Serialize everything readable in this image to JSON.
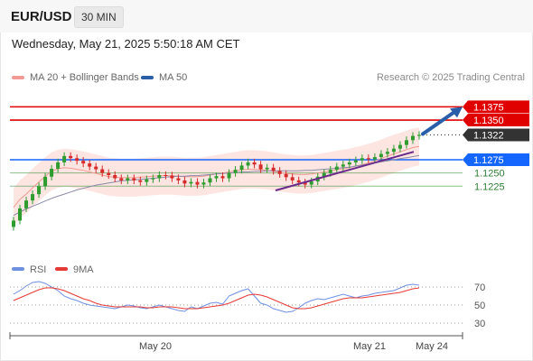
{
  "header": {
    "symbol": "EUR/USD",
    "timeframe": "30 MIN",
    "datetime": "Wednesday, May 21, 2025 5:50:18 AM CET"
  },
  "legend": {
    "bollinger_label": "MA 20 + Bollinger Bands",
    "ma50_label": "MA 50",
    "bollinger_color": "#f29a93",
    "ma50_color": "#2a5ea8",
    "copyright": "Research © 2025 Trading Central"
  },
  "rsi_legend": {
    "rsi_label": "RSI",
    "ma_label": "9MA",
    "rsi_color": "#6f8fe0",
    "ma_color": "#e53935"
  },
  "chart_data": [
    {
      "type": "candlestick",
      "title": "EUR/USD",
      "timeframe": "30 MIN",
      "x_ticks": [
        "May 20",
        "May 21",
        "May 24"
      ],
      "y_range": [
        1.113,
        1.142
      ],
      "levels": [
        {
          "value": 1.1375,
          "label": "1.1375",
          "role": "resistance",
          "color": "#e00000",
          "style": "solid"
        },
        {
          "value": 1.135,
          "label": "1.1350",
          "role": "resistance",
          "color": "#e00000",
          "style": "solid"
        },
        {
          "value": 1.1322,
          "label": "1.1322",
          "role": "last-price",
          "color": "#333333",
          "style": "dotted"
        },
        {
          "value": 1.1275,
          "label": "1.1275",
          "role": "pivot",
          "color": "#1565ff",
          "style": "solid"
        },
        {
          "value": 1.125,
          "label": "1.1250",
          "role": "support",
          "color": "#2e8b2e",
          "style": "solid"
        },
        {
          "value": 1.1225,
          "label": "1.1225",
          "role": "support",
          "color": "#2e8b2e",
          "style": "solid"
        }
      ],
      "close_series": [
        1.116,
        1.1183,
        1.1198,
        1.121,
        1.1225,
        1.1243,
        1.1258,
        1.127,
        1.1282,
        1.1278,
        1.1273,
        1.1268,
        1.1262,
        1.1257,
        1.125,
        1.1246,
        1.124,
        1.1236,
        1.124,
        1.1236,
        1.1233,
        1.1238,
        1.124,
        1.1246,
        1.1245,
        1.124,
        1.1236,
        1.123,
        1.1233,
        1.1228,
        1.1232,
        1.124,
        1.1244,
        1.124,
        1.125,
        1.1256,
        1.1264,
        1.127,
        1.1266,
        1.1257,
        1.126,
        1.1254,
        1.1248,
        1.1242,
        1.1236,
        1.1232,
        1.1228,
        1.1234,
        1.1243,
        1.125,
        1.1256,
        1.1262,
        1.1266,
        1.127,
        1.1274,
        1.1278,
        1.1276,
        1.128,
        1.1286,
        1.129,
        1.1296,
        1.1303,
        1.1312,
        1.132,
        1.1322
      ],
      "ma20": [
        1.1185,
        1.12,
        1.121,
        1.1222,
        1.1233,
        1.1244,
        1.1253,
        1.1258,
        1.126,
        1.1259,
        1.1257,
        1.1255,
        1.1252,
        1.1249,
        1.1246,
        1.1243,
        1.1242,
        1.1241,
        1.1241,
        1.1241,
        1.1242,
        1.1243,
        1.1244,
        1.1245,
        1.1245,
        1.1245,
        1.1244,
        1.1243,
        1.1243,
        1.1243,
        1.1244,
        1.1246,
        1.1248,
        1.125,
        1.1252,
        1.1254,
        1.1256,
        1.1257,
        1.1257,
        1.1256,
        1.1255,
        1.1253,
        1.1251,
        1.1249,
        1.1248,
        1.1247,
        1.1247,
        1.1248,
        1.125,
        1.1252,
        1.1254,
        1.1256,
        1.1258,
        1.126,
        1.1263,
        1.1266,
        1.1269,
        1.1273,
        1.1277,
        1.1282,
        1.1286,
        1.129,
        1.1294,
        1.1298,
        1.13
      ],
      "ma50": [
        1.117,
        1.1176,
        1.1182,
        1.1187,
        1.1192,
        1.1197,
        1.1202,
        1.1206,
        1.121,
        1.1214,
        1.1218,
        1.1221,
        1.1224,
        1.1227,
        1.1229,
        1.1231,
        1.1233,
        1.1235,
        1.1236,
        1.1237,
        1.1238,
        1.1239,
        1.124,
        1.1241,
        1.1242,
        1.1243,
        1.1244,
        1.1244,
        1.1245,
        1.1245,
        1.1246,
        1.1247,
        1.1248,
        1.1249,
        1.125,
        1.1251,
        1.1252,
        1.1252,
        1.1253,
        1.1253,
        1.1254,
        1.1254,
        1.1254,
        1.1254,
        1.1254,
        1.1254,
        1.1255,
        1.1255,
        1.1256,
        1.1257,
        1.1258,
        1.1259,
        1.126,
        1.1261,
        1.1263,
        1.1265,
        1.1267,
        1.1269,
        1.1271,
        1.1273,
        1.1275,
        1.1277,
        1.1279,
        1.1281,
        1.1283
      ],
      "bollinger_width": 0.0036,
      "trendlines": [
        {
          "from": [
            1.1217,
            "May 20 late"
          ],
          "to": [
            1.129,
            "May 21"
          ],
          "color": "#6a2a8a"
        }
      ],
      "target_arrow": {
        "from": 1.1322,
        "to": 1.1375,
        "color": "#2a5ea8"
      }
    },
    {
      "type": "line",
      "title": "RSI",
      "y_ticks": [
        70,
        50,
        30
      ],
      "y_range": [
        20,
        80
      ],
      "series": [
        {
          "name": "RSI",
          "values": [
            62,
            66,
            71,
            75,
            76,
            74,
            70,
            66,
            60,
            57,
            55,
            52,
            50,
            49,
            48,
            47,
            46,
            48,
            50,
            49,
            47,
            46,
            48,
            50,
            48,
            46,
            44,
            43,
            48,
            46,
            49,
            52,
            53,
            51,
            60,
            63,
            66,
            68,
            60,
            52,
            50,
            46,
            44,
            42,
            43,
            47,
            52,
            55,
            57,
            56,
            58,
            60,
            62,
            60,
            58,
            60,
            61,
            63,
            64,
            65,
            66,
            69,
            72,
            73,
            72
          ]
        },
        {
          "name": "9MA",
          "values": [
            55,
            58,
            61,
            64,
            67,
            69,
            69,
            68,
            66,
            63,
            60,
            57,
            55,
            52,
            50,
            49,
            48,
            48,
            48,
            48,
            48,
            47,
            47,
            48,
            48,
            48,
            47,
            46,
            46,
            46,
            47,
            48,
            49,
            50,
            52,
            55,
            58,
            61,
            62,
            61,
            59,
            56,
            53,
            50,
            47,
            46,
            46,
            47,
            49,
            51,
            53,
            55,
            57,
            58,
            58,
            58,
            59,
            60,
            61,
            62,
            63,
            64,
            66,
            68,
            69
          ]
        }
      ]
    }
  ]
}
